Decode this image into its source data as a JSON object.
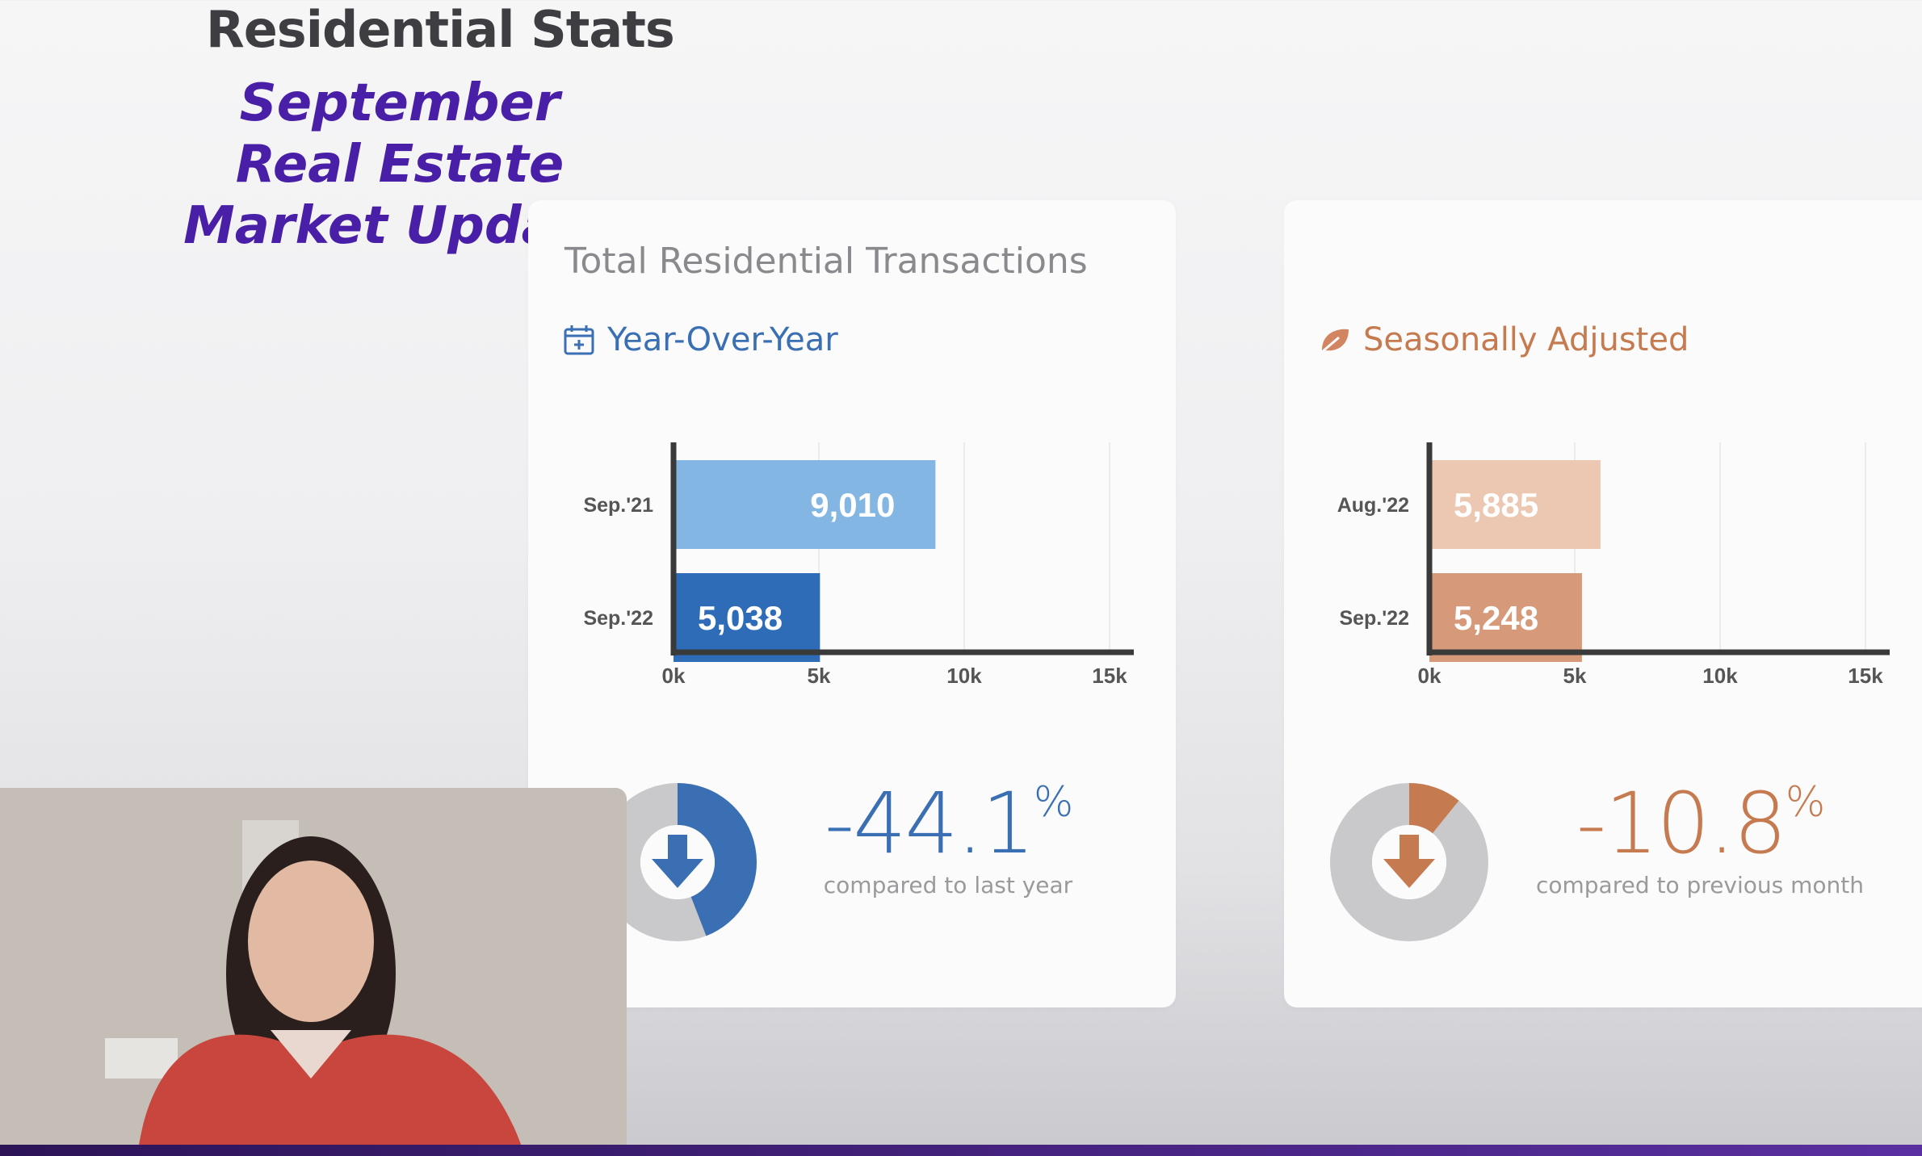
{
  "page": {
    "title": "Residential Stats",
    "overlay_title_lines": [
      "September",
      "Real Estate",
      "Market Update"
    ]
  },
  "cards": [
    {
      "title": "Total Residential Transactions",
      "subtitle": "Year-Over-Year",
      "icon": "calendar-plus-icon",
      "accent": "#3a6fb3",
      "change_value": "-44.1",
      "change_unit": "%",
      "change_caption": "compared to last year",
      "donut_fraction": 0.441
    },
    {
      "title": "",
      "subtitle": "Seasonally Adjusted",
      "icon": "leaf-icon",
      "accent": "#c67a4f",
      "change_value": "-10.8",
      "change_unit": "%",
      "change_caption": "compared to previous month",
      "donut_fraction": 0.108
    }
  ],
  "chart_data": [
    {
      "type": "bar",
      "orientation": "horizontal",
      "categories": [
        "Sep.'21",
        "Sep.'22"
      ],
      "values": [
        9010,
        5038
      ],
      "value_labels": [
        "9,010",
        "5,038"
      ],
      "colors": [
        "#83b6e2",
        "#2f6cb8"
      ],
      "xlim": [
        0,
        15000
      ],
      "xticks": [
        "0k",
        "5k",
        "10k",
        "15k"
      ],
      "grid": true
    },
    {
      "type": "bar",
      "orientation": "horizontal",
      "categories": [
        "Aug.'22",
        "Sep.'22"
      ],
      "values": [
        5885,
        5248
      ],
      "value_labels": [
        "5,885",
        "5,248"
      ],
      "colors": [
        "#ecc8b3",
        "#d69a7a"
      ],
      "xlim": [
        0,
        15000
      ],
      "xticks": [
        "0k",
        "5k",
        "10k",
        "15k"
      ],
      "grid": true
    }
  ],
  "colors": {
    "overlay_title": "#4a1fa8",
    "yoy_accent": "#3a6fb3",
    "sa_accent": "#c67a4f"
  }
}
